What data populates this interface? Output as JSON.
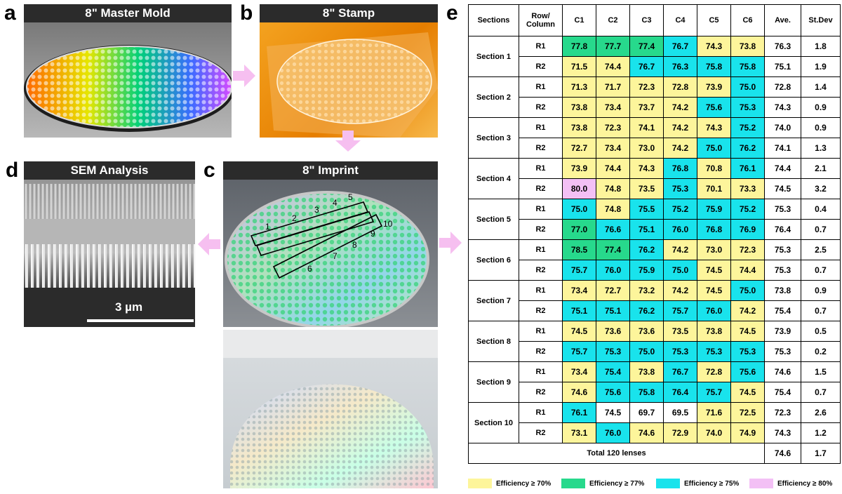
{
  "panels": {
    "a": {
      "letter": "a",
      "title": "8\" Master Mold"
    },
    "b": {
      "letter": "b",
      "title": "8\" Stamp"
    },
    "c": {
      "letter": "c",
      "title": "8\" Imprint",
      "row_labels": [
        "1",
        "2",
        "3",
        "4",
        "5",
        "6",
        "7",
        "8",
        "9",
        "10"
      ]
    },
    "d": {
      "letter": "d",
      "title": "SEM Analysis",
      "scale_label": "3 µm"
    },
    "e": {
      "letter": "e"
    }
  },
  "colors": {
    "y": "#fdf59b",
    "g": "#27d98c",
    "c": "#19e3ec",
    "p": "#f3c0f5",
    "arrow": "#f6bff0"
  },
  "table": {
    "headers": [
      "Sections",
      "Row/ Column",
      "C1",
      "C2",
      "C3",
      "C4",
      "C5",
      "C6",
      "Ave.",
      "St.Dev"
    ],
    "sections": [
      {
        "name": "Section 1",
        "rows": [
          {
            "row": "R1",
            "cells": [
              {
                "v": "77.8",
                "c": "g"
              },
              {
                "v": "77.7",
                "c": "g"
              },
              {
                "v": "77.4",
                "c": "g"
              },
              {
                "v": "76.7",
                "c": "c"
              },
              {
                "v": "74.3",
                "c": "y"
              },
              {
                "v": "73.8",
                "c": "y"
              }
            ],
            "ave": "76.3",
            "sd": "1.8"
          },
          {
            "row": "R2",
            "cells": [
              {
                "v": "71.5",
                "c": "y"
              },
              {
                "v": "74.4",
                "c": "y"
              },
              {
                "v": "76.7",
                "c": "c"
              },
              {
                "v": "76.3",
                "c": "c"
              },
              {
                "v": "75.8",
                "c": "c"
              },
              {
                "v": "75.8",
                "c": "c"
              }
            ],
            "ave": "75.1",
            "sd": "1.9"
          }
        ]
      },
      {
        "name": "Section 2",
        "rows": [
          {
            "row": "R1",
            "cells": [
              {
                "v": "71.3",
                "c": "y"
              },
              {
                "v": "71.7",
                "c": "y"
              },
              {
                "v": "72.3",
                "c": "y"
              },
              {
                "v": "72.8",
                "c": "y"
              },
              {
                "v": "73.9",
                "c": "y"
              },
              {
                "v": "75.0",
                "c": "c"
              }
            ],
            "ave": "72.8",
            "sd": "1.4"
          },
          {
            "row": "R2",
            "cells": [
              {
                "v": "73.8",
                "c": "y"
              },
              {
                "v": "73.4",
                "c": "y"
              },
              {
                "v": "73.7",
                "c": "y"
              },
              {
                "v": "74.2",
                "c": "y"
              },
              {
                "v": "75.6",
                "c": "c"
              },
              {
                "v": "75.3",
                "c": "c"
              }
            ],
            "ave": "74.3",
            "sd": "0.9"
          }
        ]
      },
      {
        "name": "Section 3",
        "rows": [
          {
            "row": "R1",
            "cells": [
              {
                "v": "73.8",
                "c": "y"
              },
              {
                "v": "72.3",
                "c": "y"
              },
              {
                "v": "74.1",
                "c": "y"
              },
              {
                "v": "74.2",
                "c": "y"
              },
              {
                "v": "74.3",
                "c": "y"
              },
              {
                "v": "75.2",
                "c": "c"
              }
            ],
            "ave": "74.0",
            "sd": "0.9"
          },
          {
            "row": "R2",
            "cells": [
              {
                "v": "72.7",
                "c": "y"
              },
              {
                "v": "73.4",
                "c": "y"
              },
              {
                "v": "73.0",
                "c": "y"
              },
              {
                "v": "74.2",
                "c": "y"
              },
              {
                "v": "75.0",
                "c": "c"
              },
              {
                "v": "76.2",
                "c": "c"
              }
            ],
            "ave": "74.1",
            "sd": "1.3"
          }
        ]
      },
      {
        "name": "Section 4",
        "rows": [
          {
            "row": "R1",
            "cells": [
              {
                "v": "73.9",
                "c": "y"
              },
              {
                "v": "74.4",
                "c": "y"
              },
              {
                "v": "74.3",
                "c": "y"
              },
              {
                "v": "76.8",
                "c": "c"
              },
              {
                "v": "70.8",
                "c": "y"
              },
              {
                "v": "76.1",
                "c": "c"
              }
            ],
            "ave": "74.4",
            "sd": "2.1"
          },
          {
            "row": "R2",
            "cells": [
              {
                "v": "80.0",
                "c": "p"
              },
              {
                "v": "74.8",
                "c": "y"
              },
              {
                "v": "73.5",
                "c": "y"
              },
              {
                "v": "75.3",
                "c": "c"
              },
              {
                "v": "70.1",
                "c": "y"
              },
              {
                "v": "73.3",
                "c": "y"
              }
            ],
            "ave": "74.5",
            "sd": "3.2"
          }
        ]
      },
      {
        "name": "Section 5",
        "rows": [
          {
            "row": "R1",
            "cells": [
              {
                "v": "75.0",
                "c": "c"
              },
              {
                "v": "74.8",
                "c": "y"
              },
              {
                "v": "75.5",
                "c": "c"
              },
              {
                "v": "75.2",
                "c": "c"
              },
              {
                "v": "75.9",
                "c": "c"
              },
              {
                "v": "75.2",
                "c": "c"
              }
            ],
            "ave": "75.3",
            "sd": "0.4"
          },
          {
            "row": "R2",
            "cells": [
              {
                "v": "77.0",
                "c": "g"
              },
              {
                "v": "76.6",
                "c": "c"
              },
              {
                "v": "75.1",
                "c": "c"
              },
              {
                "v": "76.0",
                "c": "c"
              },
              {
                "v": "76.8",
                "c": "c"
              },
              {
                "v": "76.9",
                "c": "c"
              }
            ],
            "ave": "76.4",
            "sd": "0.7"
          }
        ]
      },
      {
        "name": "Section 6",
        "rows": [
          {
            "row": "R1",
            "cells": [
              {
                "v": "78.5",
                "c": "g"
              },
              {
                "v": "77.4",
                "c": "g"
              },
              {
                "v": "76.2",
                "c": "c"
              },
              {
                "v": "74.2",
                "c": "y"
              },
              {
                "v": "73.0",
                "c": "y"
              },
              {
                "v": "72.3",
                "c": "y"
              }
            ],
            "ave": "75.3",
            "sd": "2.5"
          },
          {
            "row": "R2",
            "cells": [
              {
                "v": "75.7",
                "c": "c"
              },
              {
                "v": "76.0",
                "c": "c"
              },
              {
                "v": "75.9",
                "c": "c"
              },
              {
                "v": "75.0",
                "c": "c"
              },
              {
                "v": "74.5",
                "c": "y"
              },
              {
                "v": "74.4",
                "c": "y"
              }
            ],
            "ave": "75.3",
            "sd": "0.7"
          }
        ]
      },
      {
        "name": "Section 7",
        "rows": [
          {
            "row": "R1",
            "cells": [
              {
                "v": "73.4",
                "c": "y"
              },
              {
                "v": "72.7",
                "c": "y"
              },
              {
                "v": "73.2",
                "c": "y"
              },
              {
                "v": "74.2",
                "c": "y"
              },
              {
                "v": "74.5",
                "c": "y"
              },
              {
                "v": "75.0",
                "c": "c"
              }
            ],
            "ave": "73.8",
            "sd": "0.9"
          },
          {
            "row": "R2",
            "cells": [
              {
                "v": "75.1",
                "c": "c"
              },
              {
                "v": "75.1",
                "c": "c"
              },
              {
                "v": "76.2",
                "c": "c"
              },
              {
                "v": "75.7",
                "c": "c"
              },
              {
                "v": "76.0",
                "c": "c"
              },
              {
                "v": "74.2",
                "c": "y"
              }
            ],
            "ave": "75.4",
            "sd": "0.7"
          }
        ]
      },
      {
        "name": "Section 8",
        "rows": [
          {
            "row": "R1",
            "cells": [
              {
                "v": "74.5",
                "c": "y"
              },
              {
                "v": "73.6",
                "c": "y"
              },
              {
                "v": "73.6",
                "c": "y"
              },
              {
                "v": "73.5",
                "c": "y"
              },
              {
                "v": "73.8",
                "c": "y"
              },
              {
                "v": "74.5",
                "c": "y"
              }
            ],
            "ave": "73.9",
            "sd": "0.5"
          },
          {
            "row": "R2",
            "cells": [
              {
                "v": "75.7",
                "c": "c"
              },
              {
                "v": "75.3",
                "c": "c"
              },
              {
                "v": "75.0",
                "c": "c"
              },
              {
                "v": "75.3",
                "c": "c"
              },
              {
                "v": "75.3",
                "c": "c"
              },
              {
                "v": "75.3",
                "c": "c"
              }
            ],
            "ave": "75.3",
            "sd": "0.2"
          }
        ]
      },
      {
        "name": "Section 9",
        "rows": [
          {
            "row": "R1",
            "cells": [
              {
                "v": "73.4",
                "c": "y"
              },
              {
                "v": "75.4",
                "c": "c"
              },
              {
                "v": "73.8",
                "c": "y"
              },
              {
                "v": "76.7",
                "c": "c"
              },
              {
                "v": "72.8",
                "c": "y"
              },
              {
                "v": "75.6",
                "c": "c"
              }
            ],
            "ave": "74.6",
            "sd": "1.5"
          },
          {
            "row": "R2",
            "cells": [
              {
                "v": "74.6",
                "c": "y"
              },
              {
                "v": "75.6",
                "c": "c"
              },
              {
                "v": "75.8",
                "c": "c"
              },
              {
                "v": "76.4",
                "c": "c"
              },
              {
                "v": "75.7",
                "c": "c"
              },
              {
                "v": "74.5",
                "c": "y"
              }
            ],
            "ave": "75.4",
            "sd": "0.7"
          }
        ]
      },
      {
        "name": "Section 10",
        "rows": [
          {
            "row": "R1",
            "cells": [
              {
                "v": "76.1",
                "c": "c"
              },
              {
                "v": "74.5",
                "c": "w"
              },
              {
                "v": "69.7",
                "c": "w"
              },
              {
                "v": "69.5",
                "c": "w"
              },
              {
                "v": "71.6",
                "c": "y"
              },
              {
                "v": "72.5",
                "c": "y"
              }
            ],
            "ave": "72.3",
            "sd": "2.6"
          },
          {
            "row": "R2",
            "cells": [
              {
                "v": "73.1",
                "c": "y"
              },
              {
                "v": "76.0",
                "c": "c"
              },
              {
                "v": "74.6",
                "c": "y"
              },
              {
                "v": "72.9",
                "c": "y"
              },
              {
                "v": "74.0",
                "c": "y"
              },
              {
                "v": "74.9",
                "c": "y"
              }
            ],
            "ave": "74.3",
            "sd": "1.2"
          }
        ]
      }
    ],
    "total": {
      "label": "Total 120 lenses",
      "ave": "74.6",
      "sd": "1.7"
    }
  },
  "legend": [
    {
      "label": "Efficiency ≥ 70%",
      "c": "y"
    },
    {
      "label": "Efficiency ≥ 77%",
      "c": "g"
    },
    {
      "label": "Efficiency ≥ 75%",
      "c": "c"
    },
    {
      "label": "Efficiency ≥ 80%",
      "c": "p"
    }
  ]
}
